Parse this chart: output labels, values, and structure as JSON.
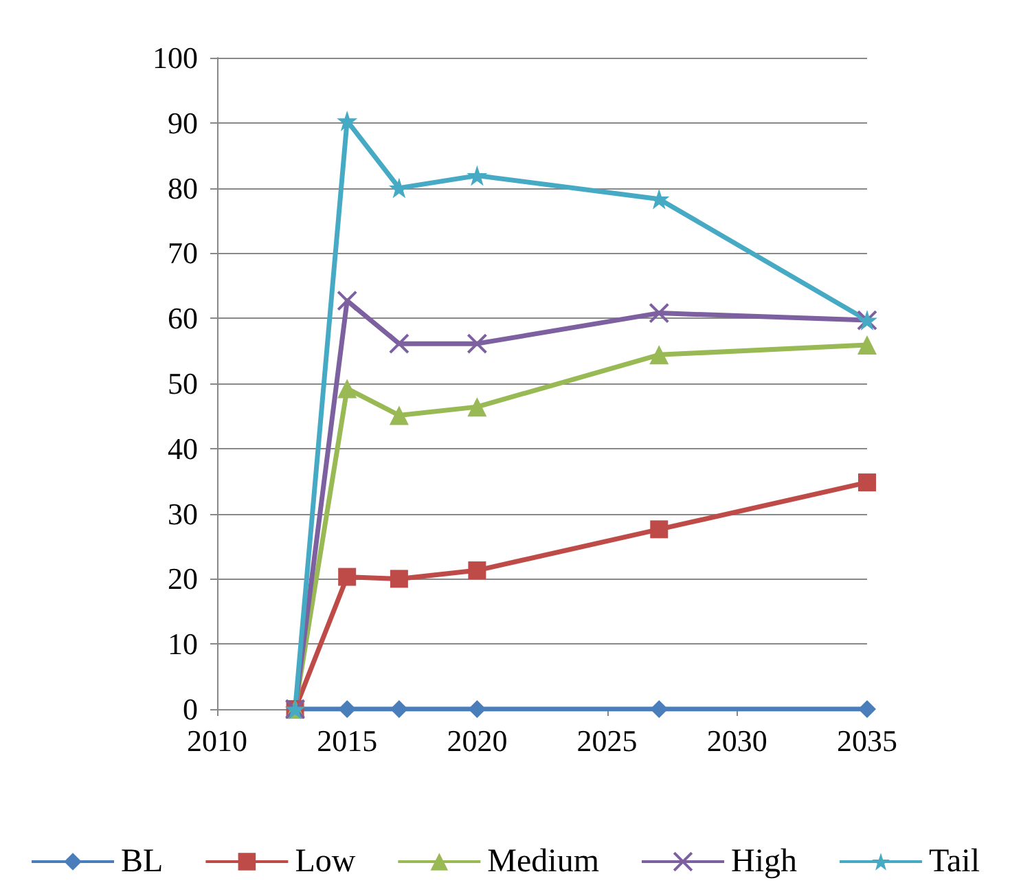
{
  "chart_data": {
    "type": "line",
    "x": [
      2013,
      2015,
      2017,
      2020,
      2027,
      2035
    ],
    "xlim": [
      2010,
      2035
    ],
    "xticks": [
      2010,
      2015,
      2020,
      2025,
      2030,
      2035
    ],
    "ylim": [
      0,
      100
    ],
    "yticks": [
      0,
      10,
      20,
      30,
      40,
      50,
      60,
      70,
      80,
      90,
      100
    ],
    "grid": "y",
    "legend": "bottom",
    "series": [
      {
        "name": "BL",
        "color": "#4a7ebb",
        "marker": "diamond",
        "values": [
          0,
          0,
          0,
          0,
          0,
          0
        ]
      },
      {
        "name": "Low",
        "color": "#be4b48",
        "marker": "square",
        "values": [
          0,
          20.3,
          20,
          21.3,
          27.6,
          34.8
        ]
      },
      {
        "name": "Medium",
        "color": "#98b954",
        "marker": "triangle",
        "values": [
          0,
          49.2,
          45.1,
          46.4,
          54.4,
          55.9
        ]
      },
      {
        "name": "High",
        "color": "#7d60a0",
        "marker": "cross",
        "values": [
          0,
          62.7,
          56.1,
          56.1,
          60.8,
          59.7
        ]
      },
      {
        "name": "Tail",
        "color": "#46aac5",
        "marker": "star",
        "values": [
          0,
          90.3,
          80,
          81.9,
          78.3,
          59.7
        ]
      }
    ]
  }
}
